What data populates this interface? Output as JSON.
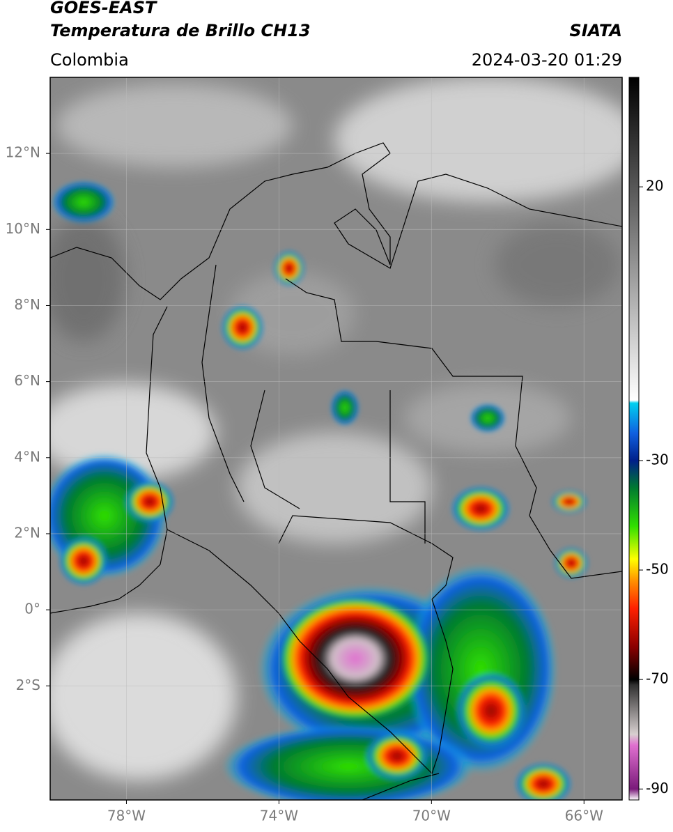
{
  "header": {
    "title": "GOES-EAST",
    "subtitle": "Temperatura de Brillo CH13",
    "source": "SIATA",
    "region": "Colombia",
    "datetime": "2024-03-20 01:29"
  },
  "map": {
    "xlim": [
      -80,
      -65
    ],
    "ylim": [
      -5,
      14
    ],
    "xticks": [
      {
        "value": -78,
        "label": "78°W"
      },
      {
        "value": -74,
        "label": "74°W"
      },
      {
        "value": -70,
        "label": "70°W"
      },
      {
        "value": -66,
        "label": "66°W"
      }
    ],
    "yticks": [
      {
        "value": 12,
        "label": "12°N"
      },
      {
        "value": 10,
        "label": "10°N"
      },
      {
        "value": 8,
        "label": "8°N"
      },
      {
        "value": 6,
        "label": "6°N"
      },
      {
        "value": 4,
        "label": "4°N"
      },
      {
        "value": 2,
        "label": "2°N"
      },
      {
        "value": 0,
        "label": "0°"
      },
      {
        "value": -2,
        "label": "2°S"
      }
    ],
    "grid": true
  },
  "colorbar": {
    "lim": [
      -92,
      40
    ],
    "ticks": [
      20,
      -30,
      -50,
      -70,
      -90
    ],
    "stops": [
      {
        "value": -92,
        "color": "#ffffff"
      },
      {
        "value": -90,
        "color": "#7a1a7a"
      },
      {
        "value": -82,
        "color": "#e070d0"
      },
      {
        "value": -80,
        "color": "#d8d0d0"
      },
      {
        "value": -71,
        "color": "#303030"
      },
      {
        "value": -70,
        "color": "#000000"
      },
      {
        "value": -64,
        "color": "#8b0000"
      },
      {
        "value": -57,
        "color": "#ff2000"
      },
      {
        "value": -52,
        "color": "#ff9000"
      },
      {
        "value": -48,
        "color": "#ffff00"
      },
      {
        "value": -42,
        "color": "#30e000"
      },
      {
        "value": -35,
        "color": "#007a30"
      },
      {
        "value": -30,
        "color": "#00208a"
      },
      {
        "value": -25,
        "color": "#1060e0"
      },
      {
        "value": -19.5,
        "color": "#00d0f0"
      },
      {
        "value": -19,
        "color": "#ffffff"
      },
      {
        "value": 40,
        "color": "#000000"
      }
    ]
  }
}
